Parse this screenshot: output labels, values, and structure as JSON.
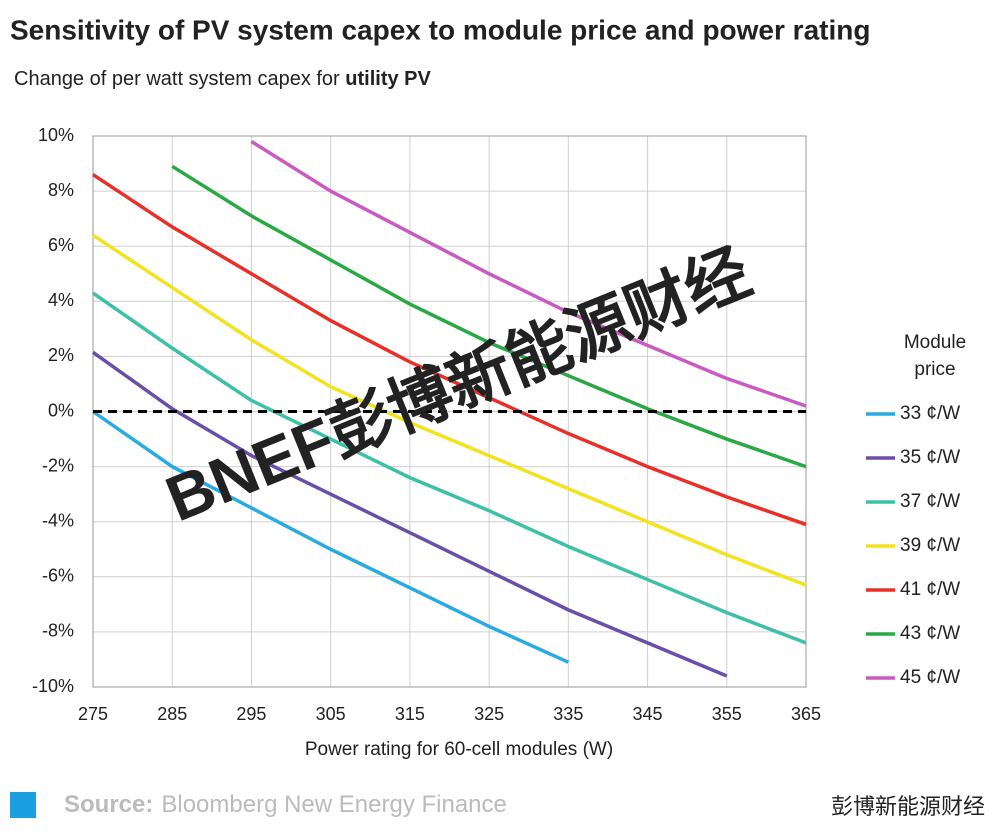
{
  "chart_data": {
    "type": "line",
    "title": "Sensitivity of PV system capex to module price and power rating",
    "subtitle": "Change of per watt system capex for ",
    "subtitle_bold": "utility PV",
    "x_label": "Power rating for 60-cell modules (W)",
    "x": [
      275,
      285,
      295,
      305,
      315,
      325,
      335,
      345,
      355,
      365
    ],
    "xlim": [
      275,
      365
    ],
    "xticks": [
      275,
      285,
      295,
      305,
      315,
      325,
      335,
      345,
      355,
      365
    ],
    "ylim": [
      -10,
      10
    ],
    "yticks": [
      {
        "value": -10,
        "label": "-10%"
      },
      {
        "value": -8,
        "label": "-8%"
      },
      {
        "value": -6,
        "label": "-6%"
      },
      {
        "value": -4,
        "label": "-4%"
      },
      {
        "value": -2,
        "label": "-2%"
      },
      {
        "value": 0,
        "label": "0%"
      },
      {
        "value": 2,
        "label": "2%"
      },
      {
        "value": 4,
        "label": "4%"
      },
      {
        "value": 6,
        "label": "6%"
      },
      {
        "value": 8,
        "label": "8%"
      },
      {
        "value": 10,
        "label": "10%"
      }
    ],
    "grid": true,
    "reference_line": 0,
    "legend_title": [
      "Module",
      "price"
    ],
    "series": [
      {
        "name": "33 ¢/W",
        "color": "#29abe2",
        "values": [
          0,
          -2.0,
          -3.5,
          -5.0,
          -6.4,
          -7.8,
          -9.1,
          null,
          null,
          null
        ]
      },
      {
        "name": "35 ¢/W",
        "color": "#6a4fa8",
        "values": [
          2.15,
          0.1,
          -1.6,
          -3.0,
          -4.4,
          -5.8,
          -7.2,
          -8.4,
          -9.6,
          null
        ]
      },
      {
        "name": "37 ¢/W",
        "color": "#3dbfa8",
        "values": [
          4.3,
          2.3,
          0.4,
          -1.0,
          -2.4,
          -3.6,
          -4.9,
          -6.1,
          -7.3,
          -8.4
        ]
      },
      {
        "name": "39 ¢/W",
        "color": "#f2e21f",
        "values": [
          6.4,
          4.5,
          2.6,
          0.9,
          -0.4,
          -1.6,
          -2.8,
          -4.0,
          -5.2,
          -6.3
        ]
      },
      {
        "name": "41 ¢/W",
        "color": "#e8302a",
        "values": [
          8.6,
          6.7,
          5.0,
          3.3,
          1.8,
          0.5,
          -0.8,
          -2.0,
          -3.1,
          -4.1
        ]
      },
      {
        "name": "43 ¢/W",
        "color": "#2aa845",
        "values": [
          null,
          8.9,
          7.1,
          5.5,
          3.9,
          2.5,
          1.3,
          0.1,
          -1.0,
          -2.0
        ]
      },
      {
        "name": "45 ¢/W",
        "color": "#c95bc0",
        "values": [
          null,
          null,
          9.8,
          8.0,
          6.5,
          5.0,
          3.6,
          2.4,
          1.2,
          0.2
        ]
      }
    ],
    "source_label": "Source:",
    "source": "Bloomberg New Energy Finance",
    "watermark": "BNEF彭博新能源财经",
    "footer_brand": "彭博新能源财经"
  }
}
